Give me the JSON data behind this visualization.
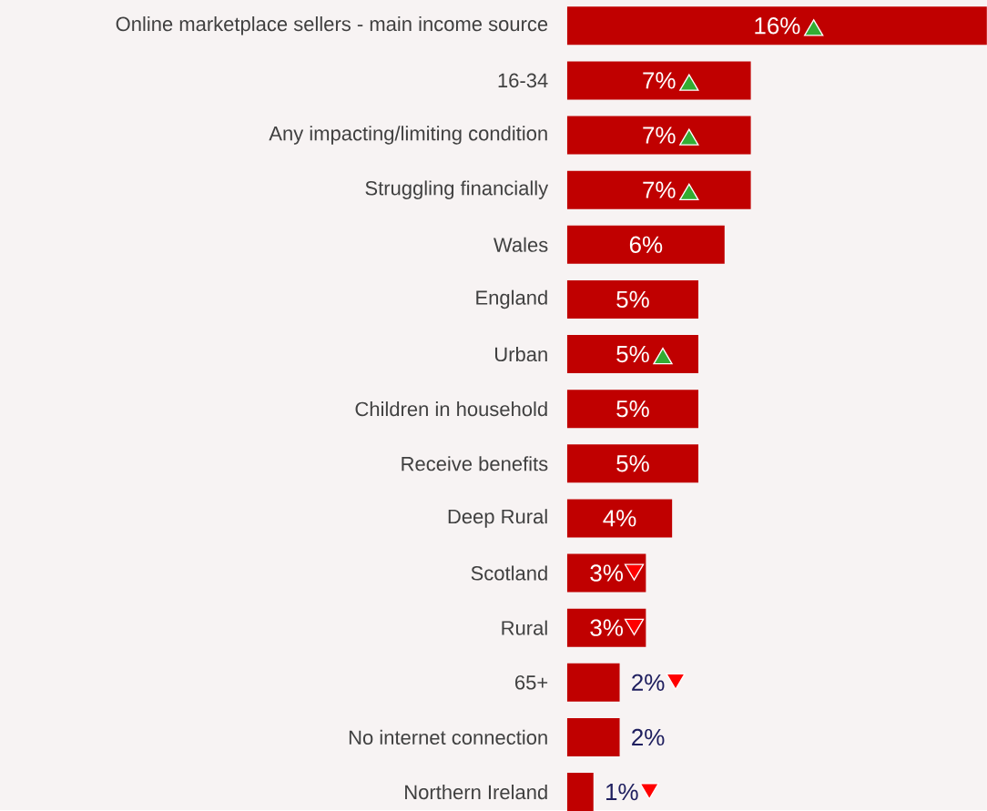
{
  "chart_data": {
    "type": "bar",
    "orientation": "horizontal",
    "categories": [
      "Online marketplace sellers - main income source",
      "16-34",
      "Any impacting/limiting condition",
      "Struggling financially",
      "Wales",
      "England",
      "Urban",
      "Children in household",
      "Receive benefits",
      "Deep Rural",
      "Scotland",
      "Rural",
      "65+",
      "No internet connection",
      "Northern Ireland"
    ],
    "values": [
      16,
      7,
      7,
      7,
      6,
      5,
      5,
      5,
      5,
      4,
      3,
      3,
      2,
      2,
      1
    ],
    "value_labels": [
      "16%",
      "7%",
      "7%",
      "7%",
      "6%",
      "5%",
      "5%",
      "5%",
      "5%",
      "4%",
      "3%",
      "3%",
      "2%",
      "2%",
      "1%"
    ],
    "color": "#c00000",
    "xlim": [
      0,
      16
    ]
  }
}
